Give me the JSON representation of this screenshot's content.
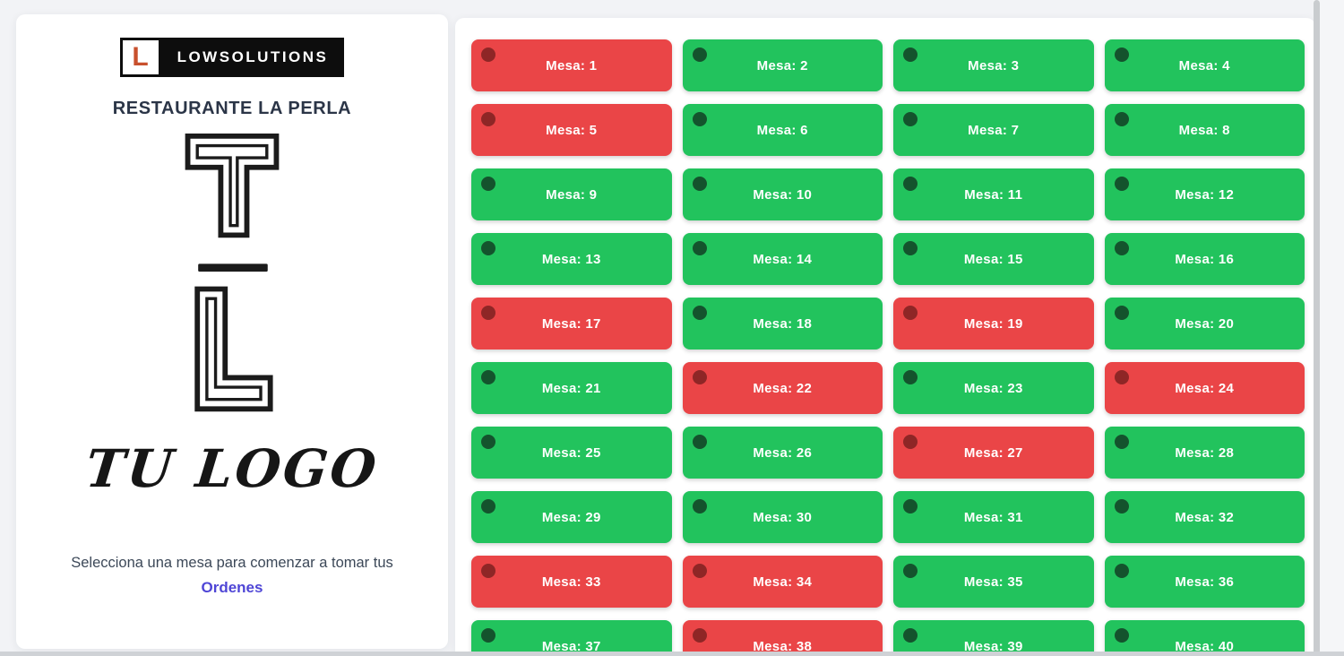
{
  "sidebar": {
    "brand": {
      "initial": "L",
      "name": "LOWSOLUTIONS"
    },
    "restaurant_name": "RESTAURANTE LA PERLA",
    "logo_placeholder_text": "TU LOGO",
    "instruction_line": "Selecciona una mesa para comenzar a tomar tus",
    "instruction_link": "Ordenes"
  },
  "tables": {
    "label_prefix": "Mesa: ",
    "colors": {
      "available_bg": "#22c35d",
      "available_dot": "#14532d",
      "occupied_bg": "#ea4547",
      "occupied_dot": "#8e2626",
      "label_text": "#ffffff"
    },
    "items": [
      {
        "label": "Mesa: 1",
        "status": "occupied"
      },
      {
        "label": "Mesa: 2",
        "status": "available"
      },
      {
        "label": "Mesa: 3",
        "status": "available"
      },
      {
        "label": "Mesa: 4",
        "status": "available"
      },
      {
        "label": "Mesa: 5",
        "status": "occupied"
      },
      {
        "label": "Mesa: 6",
        "status": "available"
      },
      {
        "label": "Mesa: 7",
        "status": "available"
      },
      {
        "label": "Mesa: 8",
        "status": "available"
      },
      {
        "label": "Mesa: 9",
        "status": "available"
      },
      {
        "label": "Mesa: 10",
        "status": "available"
      },
      {
        "label": "Mesa: 11",
        "status": "available"
      },
      {
        "label": "Mesa: 12",
        "status": "available"
      },
      {
        "label": "Mesa: 13",
        "status": "available"
      },
      {
        "label": "Mesa: 14",
        "status": "available"
      },
      {
        "label": "Mesa: 15",
        "status": "available"
      },
      {
        "label": "Mesa: 16",
        "status": "available"
      },
      {
        "label": "Mesa: 17",
        "status": "occupied"
      },
      {
        "label": "Mesa: 18",
        "status": "available"
      },
      {
        "label": "Mesa: 19",
        "status": "occupied"
      },
      {
        "label": "Mesa: 20",
        "status": "available"
      },
      {
        "label": "Mesa: 21",
        "status": "available"
      },
      {
        "label": "Mesa: 22",
        "status": "occupied"
      },
      {
        "label": "Mesa: 23",
        "status": "available"
      },
      {
        "label": "Mesa: 24",
        "status": "occupied"
      },
      {
        "label": "Mesa: 25",
        "status": "available"
      },
      {
        "label": "Mesa: 26",
        "status": "available"
      },
      {
        "label": "Mesa: 27",
        "status": "occupied"
      },
      {
        "label": "Mesa: 28",
        "status": "available"
      },
      {
        "label": "Mesa: 29",
        "status": "available"
      },
      {
        "label": "Mesa: 30",
        "status": "available"
      },
      {
        "label": "Mesa: 31",
        "status": "available"
      },
      {
        "label": "Mesa: 32",
        "status": "available"
      },
      {
        "label": "Mesa: 33",
        "status": "occupied"
      },
      {
        "label": "Mesa: 34",
        "status": "occupied"
      },
      {
        "label": "Mesa: 35",
        "status": "available"
      },
      {
        "label": "Mesa: 36",
        "status": "available"
      },
      {
        "label": "Mesa: 37",
        "status": "available"
      },
      {
        "label": "Mesa: 38",
        "status": "occupied"
      },
      {
        "label": "Mesa: 39",
        "status": "available"
      },
      {
        "label": "Mesa: 40",
        "status": "available"
      }
    ]
  }
}
